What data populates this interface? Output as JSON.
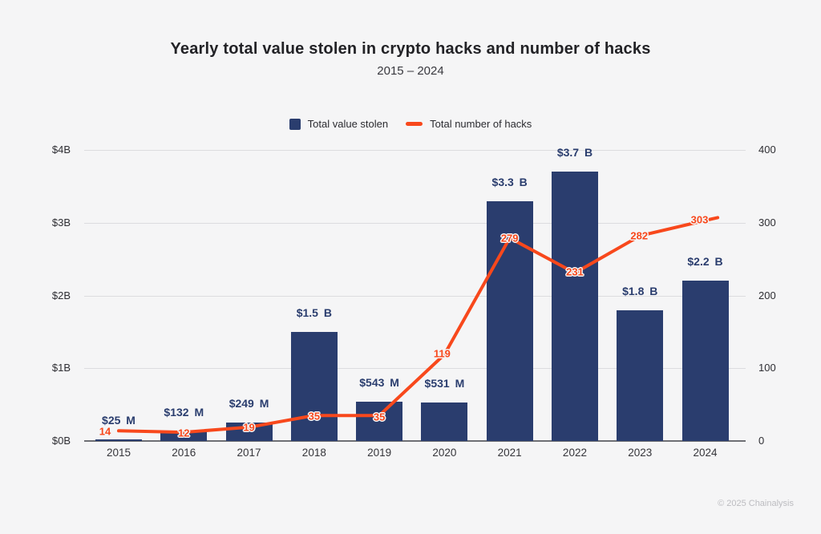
{
  "title": "Yearly total value stolen in crypto hacks and number of hacks",
  "subtitle": "2015 – 2024",
  "legend": [
    {
      "label": "Total value stolen",
      "swatch": "bar-square",
      "color": "#2a3d6e"
    },
    {
      "label": "Total number of hacks",
      "swatch": "line-dash",
      "color": "#f8481c"
    }
  ],
  "footer": "© 2025 Chainalysis",
  "colors": {
    "background": "#f5f5f6",
    "bar": "#2a3d6e",
    "line": "#f8481c",
    "grid": "#dcdcdf",
    "axis": "#6e6f74",
    "title_text": "#222226",
    "tick_text": "#2e2e33",
    "footer_text": "#bcbcc0"
  },
  "chart_data": {
    "type": "bar",
    "subtype": "bar+line dual axis",
    "title": "Yearly total value stolen in crypto hacks and number of hacks",
    "subtitle": "2015 – 2024",
    "categories": [
      "2015",
      "2016",
      "2017",
      "2018",
      "2019",
      "2020",
      "2021",
      "2022",
      "2023",
      "2024"
    ],
    "series": [
      {
        "name": "Total value stolen",
        "type": "bar",
        "axis": "left",
        "unit": "USD billions",
        "values": [
          0.025,
          0.132,
          0.249,
          1.5,
          0.543,
          0.531,
          3.3,
          3.7,
          1.8,
          2.2
        ],
        "labels": [
          "$25 M",
          "$132 M",
          "$249 M",
          "$1.5 B",
          "$543 M",
          "$531 M",
          "$3.3 B",
          "$3.7 B",
          "$1.8 B",
          "$2.2 B"
        ],
        "color": "#2a3d6e"
      },
      {
        "name": "Total number of hacks",
        "type": "line",
        "axis": "right",
        "unit": "hacks",
        "values": [
          14,
          12,
          19,
          35,
          35,
          119,
          279,
          231,
          282,
          303
        ],
        "labels": [
          "14",
          "12",
          "19",
          "35",
          "35",
          "119",
          "279",
          "231",
          "282",
          "303"
        ],
        "label_offsets": [
          [
            -17,
            1
          ],
          [
            0,
            1
          ],
          [
            0,
            0
          ],
          [
            0,
            1
          ],
          [
            0,
            2
          ],
          [
            -3,
            -1
          ],
          [
            0,
            0
          ],
          [
            0,
            -1
          ],
          [
            -1,
            0
          ],
          [
            -7,
            -1
          ]
        ],
        "color": "#f8481c"
      }
    ],
    "left_axis": {
      "label": "",
      "ticks": [
        "$4B",
        "$3B",
        "$2B",
        "$1B",
        "$0B"
      ],
      "tick_values": [
        4,
        3,
        2,
        1,
        0
      ],
      "min": 0,
      "max": 4
    },
    "right_axis": {
      "label": "",
      "ticks": [
        "400",
        "300",
        "200",
        "100",
        "0"
      ],
      "tick_values": [
        400,
        300,
        200,
        100,
        0
      ],
      "min": 0,
      "max": 400
    },
    "grid": true,
    "legend_position": "top"
  }
}
